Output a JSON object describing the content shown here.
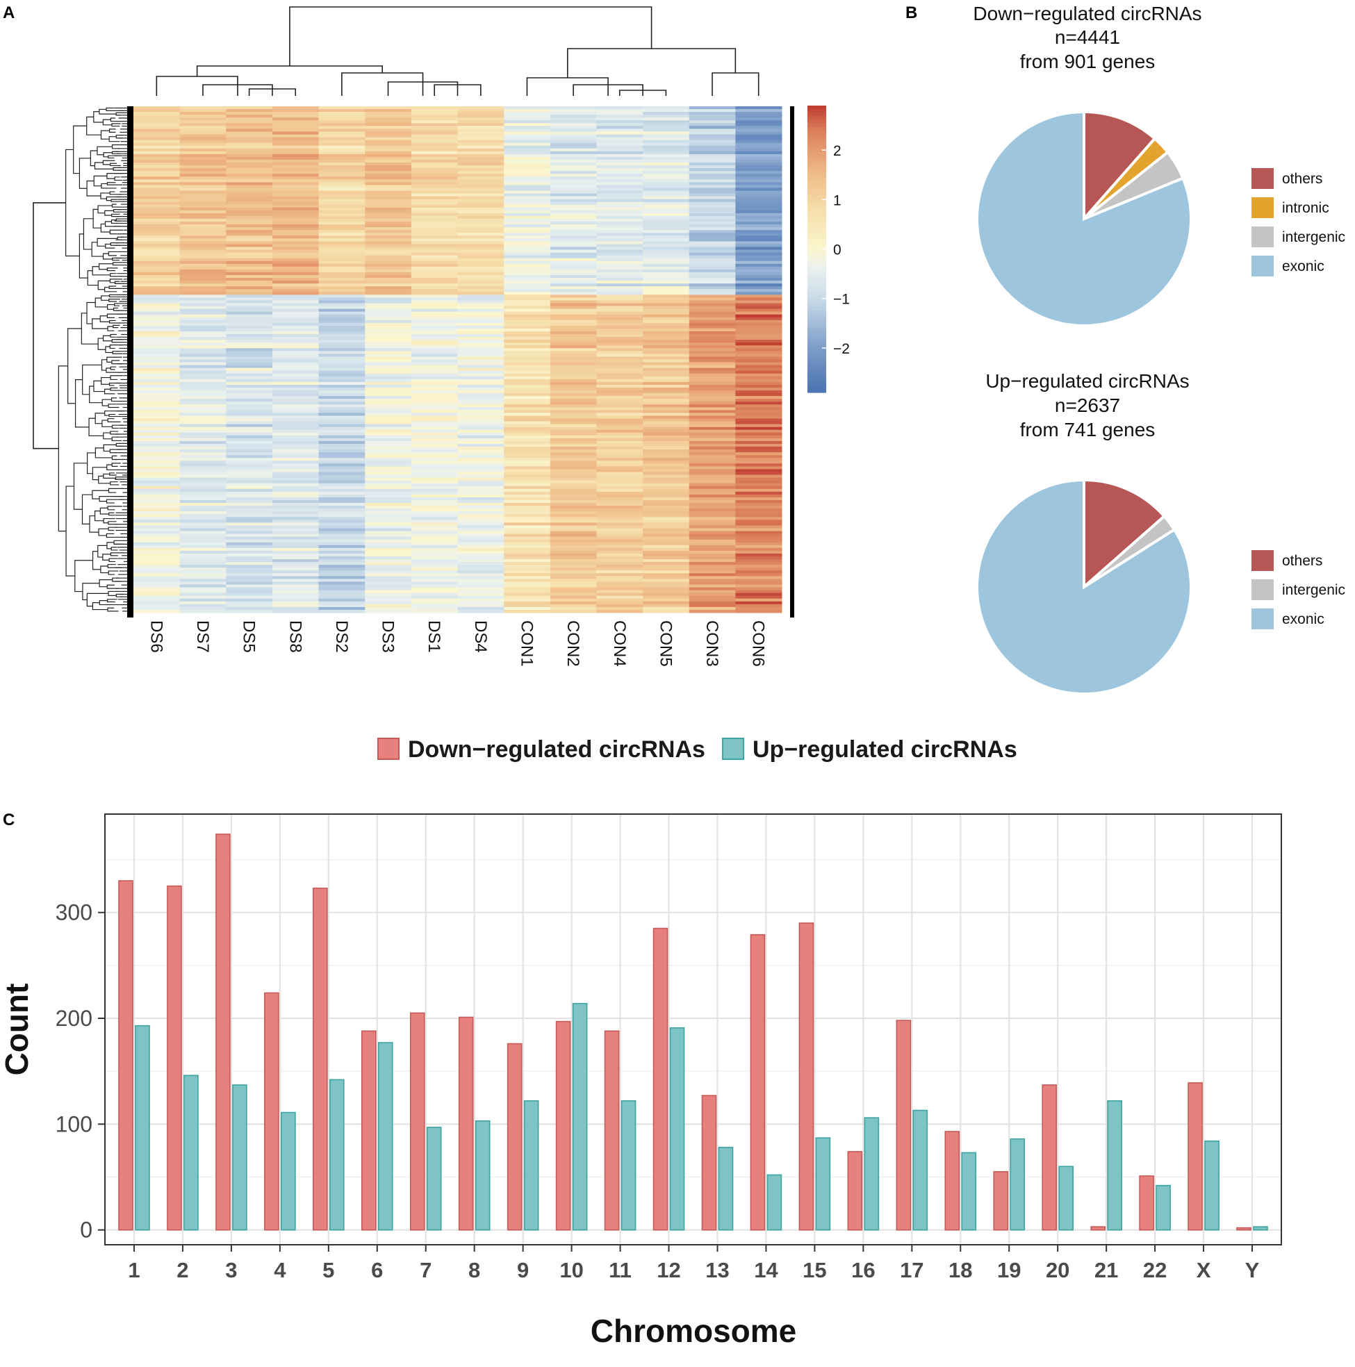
{
  "panels": {
    "a": "A",
    "b": "B",
    "c": "C"
  },
  "colors": {
    "down": "#e6817d",
    "down_border": "#c65a57",
    "up": "#7fc4c4",
    "up_border": "#3ea3a3",
    "pie_others": "#b65756",
    "pie_intronic": "#e3a42e",
    "pie_intergenic": "#c4c4c4",
    "pie_exonic": "#9dc6de"
  },
  "chart_data": [
    {
      "type": "heatmap",
      "panel": "A",
      "columns": [
        "DS6",
        "DS7",
        "DS5",
        "DS8",
        "DS2",
        "DS3",
        "DS1",
        "DS4",
        "CON1",
        "CON2",
        "CON4",
        "CON5",
        "CON3",
        "CON6"
      ],
      "row_groups": [
        {
          "name": "upper cluster",
          "share": 0.37,
          "values": [
            1.0,
            1.3,
            1.4,
            1.5,
            0.9,
            1.2,
            0.8,
            0.8,
            -0.4,
            -0.6,
            -0.6,
            -0.6,
            -1.1,
            -2.0
          ]
        },
        {
          "name": "lower cluster",
          "share": 0.63,
          "values": [
            -0.2,
            -0.6,
            -0.7,
            -0.6,
            -1.0,
            -0.3,
            -0.2,
            -0.3,
            0.6,
            1.2,
            1.1,
            1.2,
            1.9,
            2.3
          ]
        }
      ],
      "colorbar": {
        "ticks": [
          2,
          1,
          0,
          -1,
          -2
        ],
        "tick_labels": [
          "2",
          "1",
          "0",
          "−1",
          "−2"
        ],
        "range": [
          -2.9,
          2.9
        ]
      }
    },
    {
      "type": "pie",
      "panel": "B",
      "title_lines": [
        "Down−regulated circRNAs",
        "n=4441",
        "from 901 genes"
      ],
      "slices": [
        {
          "label": "others",
          "value": 11.5
        },
        {
          "label": "intronic",
          "value": 2.8
        },
        {
          "label": "intergenic",
          "value": 4.5
        },
        {
          "label": "exonic",
          "value": 81.2
        }
      ],
      "legend": [
        "others",
        "intronic",
        "intergenic",
        "exonic"
      ]
    },
    {
      "type": "pie",
      "panel": "B",
      "title_lines": [
        "Up−regulated circRNAs",
        "n=2637",
        "from 741 genes"
      ],
      "slices": [
        {
          "label": "others",
          "value": 13.5
        },
        {
          "label": "intergenic",
          "value": 2.5
        },
        {
          "label": "exonic",
          "value": 84.0
        }
      ],
      "legend": [
        "others",
        "intergenic",
        "exonic"
      ]
    },
    {
      "type": "bar",
      "panel": "C",
      "categories": [
        "1",
        "2",
        "3",
        "4",
        "5",
        "6",
        "7",
        "8",
        "9",
        "10",
        "11",
        "12",
        "13",
        "14",
        "15",
        "16",
        "17",
        "18",
        "19",
        "20",
        "21",
        "22",
        "X",
        "Y"
      ],
      "series": [
        {
          "name": "Down−regulated circRNAs",
          "values": [
            330,
            325,
            374,
            224,
            323,
            188,
            205,
            201,
            176,
            197,
            188,
            285,
            127,
            279,
            290,
            74,
            198,
            93,
            55,
            137,
            3,
            51,
            139,
            2
          ]
        },
        {
          "name": "Up−regulated circRNAs",
          "values": [
            193,
            146,
            137,
            111,
            142,
            177,
            97,
            103,
            122,
            214,
            122,
            191,
            78,
            52,
            87,
            106,
            113,
            73,
            86,
            60,
            122,
            42,
            84,
            3
          ]
        }
      ],
      "title": "",
      "xlabel": "Chromosome",
      "ylabel": "Count",
      "yticks": [
        0,
        100,
        200,
        300
      ],
      "ylim": [
        -14,
        393
      ],
      "grid": true,
      "legend_position": "top"
    }
  ]
}
